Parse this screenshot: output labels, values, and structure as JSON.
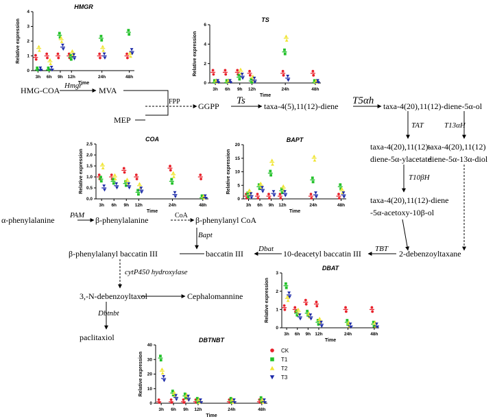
{
  "pathway": {
    "nodes": {
      "hmg_coa": "HMG-COA",
      "mva": "MVA",
      "mep": "MEP",
      "ggpp": "GGPP",
      "taxadiene": "taxa-4(5),11(12)-diene",
      "taxadienol": "taxa-4(20),11(12)-diene-5α-ol",
      "taxadienyl_acetate_1": "taxa-4(20),11(12)-",
      "taxadienyl_acetate_2": "diene-5α-ylacetate",
      "taxadiene_diol_1": "taxa-4(20),11(12)",
      "taxadiene_diol_2": "diene-5α-13α-diol",
      "acetoxy_1": "taxa-4(20),11(12)-diene",
      "acetoxy_2": "-5α-acetoxy-10β-ol",
      "debenzoyltaxane": "2-debenzoyltaxane",
      "deacetyl_baccatin": "10-deacetyl baccatin III",
      "baccatin": "baccatin III",
      "alpha_phe": "α-phenylalanine",
      "beta_phe": "β-phenylalanine",
      "beta_phe_coa": "β-phenylanyl CoA",
      "beta_phe_baccatin": "β-phenylalanyl baccatin III",
      "debenzoyltaxol": "3,-N-debenzoyltaxol",
      "cephalomannine": "Cephalomannine",
      "paclitaxel": "paclitaxiol"
    },
    "enzymes": {
      "hmgr": "Hmgr",
      "fpp": "FPP",
      "ts": "Ts",
      "t5ah": "T5αh",
      "tat": "TAT",
      "t13ah": "T13αH",
      "t10bh": "T10βH",
      "tbt": "TBT",
      "dbat": "Dbat",
      "bapt": "Bapt",
      "pam": "PAM",
      "coa": "CoA",
      "cyp450": "cytP450 hydroxylase",
      "dbtnbt": "Dbtnbt"
    }
  },
  "legend": {
    "items": [
      {
        "label": "CK",
        "color": "#e8202a",
        "shape": "circle"
      },
      {
        "label": "T1",
        "color": "#22c12a",
        "shape": "square"
      },
      {
        "label": "T2",
        "color": "#f0e534",
        "shape": "triangle-up"
      },
      {
        "label": "T3",
        "color": "#1c2aa8",
        "shape": "triangle-down"
      }
    ]
  },
  "chart_data": [
    {
      "type": "scatter",
      "title": "HMGR",
      "ylabel": "Relative expression",
      "xlabel": "Time",
      "categories": [
        "3h",
        "6h",
        "9h",
        "12h",
        "24h",
        "48h"
      ],
      "ylim": [
        0,
        4
      ],
      "yticks": [
        0,
        1,
        2,
        3,
        4
      ],
      "series": [
        {
          "name": "CK",
          "values": [
            0.9,
            1.0,
            1.0,
            1.0,
            1.0,
            1.0
          ]
        },
        {
          "name": "T1",
          "values": [
            0.05,
            0.05,
            2.4,
            0.9,
            2.2,
            2.6
          ]
        },
        {
          "name": "T2",
          "values": [
            1.5,
            0.6,
            2.1,
            1.2,
            1.5,
            1.1
          ]
        },
        {
          "name": "T3",
          "values": [
            0.05,
            0.1,
            1.6,
            0.95,
            1.0,
            1.3
          ]
        }
      ]
    },
    {
      "type": "scatter",
      "title": "TS",
      "ylabel": "Relative expression",
      "xlabel": "Time",
      "categories": [
        "3h",
        "6h",
        "9h",
        "12h",
        "24h",
        "48h"
      ],
      "ylim": [
        0,
        6
      ],
      "yticks": [
        0,
        2,
        4,
        6
      ],
      "series": [
        {
          "name": "CK",
          "values": [
            1.1,
            1.1,
            1.1,
            1.0,
            1.0,
            1.0
          ]
        },
        {
          "name": "T1",
          "values": [
            0.05,
            0.05,
            0.6,
            0.2,
            3.2,
            0.05
          ]
        },
        {
          "name": "T2",
          "values": [
            0.1,
            0.1,
            1.2,
            0.5,
            4.6,
            0.05
          ]
        },
        {
          "name": "T3",
          "values": [
            0.05,
            0.05,
            0.7,
            0.3,
            0.5,
            0.05
          ]
        }
      ]
    },
    {
      "type": "scatter",
      "title": "COA",
      "ylabel": "Relative expression",
      "xlabel": "Time",
      "categories": [
        "3h",
        "6h",
        "9h",
        "12h",
        "24h",
        "48h"
      ],
      "ylim": [
        0,
        2.5
      ],
      "yticks": [
        0.0,
        0.5,
        1.0,
        1.5,
        2.0,
        2.5
      ],
      "series": [
        {
          "name": "CK",
          "values": [
            1.0,
            1.0,
            1.3,
            1.0,
            1.4,
            1.0
          ]
        },
        {
          "name": "T1",
          "values": [
            0.9,
            0.8,
            0.7,
            0.3,
            0.8,
            0.05
          ]
        },
        {
          "name": "T2",
          "values": [
            1.5,
            1.0,
            0.8,
            0.6,
            1.1,
            0.05
          ]
        },
        {
          "name": "T3",
          "values": [
            0.5,
            0.6,
            0.6,
            0.4,
            0.2,
            0.05
          ]
        }
      ]
    },
    {
      "type": "scatter",
      "title": "BAPT",
      "ylabel": "Relative expression",
      "xlabel": "Time",
      "categories": [
        "3h",
        "6h",
        "9h",
        "12h",
        "24h",
        "48h"
      ],
      "ylim": [
        0,
        20
      ],
      "yticks": [
        0,
        5,
        10,
        15,
        20
      ],
      "series": [
        {
          "name": "CK",
          "values": [
            1.0,
            1.0,
            1.0,
            1.0,
            1.0,
            1.0
          ]
        },
        {
          "name": "T1",
          "values": [
            1.5,
            4.5,
            9.5,
            3.0,
            7.0,
            4.5
          ]
        },
        {
          "name": "T2",
          "values": [
            2.5,
            5.0,
            13.5,
            4.0,
            15.0,
            3.0
          ]
        },
        {
          "name": "T3",
          "values": [
            1.2,
            3.5,
            2.0,
            2.0,
            1.5,
            1.5
          ]
        }
      ]
    },
    {
      "type": "scatter",
      "title": "DBAT",
      "ylabel": "Relative expression",
      "xlabel": "Time",
      "categories": [
        "3h",
        "6h",
        "9h",
        "12h",
        "24h",
        "48h"
      ],
      "ylim": [
        0,
        3
      ],
      "yticks": [
        0,
        1,
        2,
        3
      ],
      "series": [
        {
          "name": "CK",
          "values": [
            1.1,
            1.0,
            1.4,
            1.3,
            1.0,
            1.0
          ]
        },
        {
          "name": "T1",
          "values": [
            2.3,
            0.8,
            0.8,
            0.3,
            0.3,
            0.2
          ]
        },
        {
          "name": "T2",
          "values": [
            1.6,
            0.9,
            0.7,
            0.4,
            0.2,
            0.2
          ]
        },
        {
          "name": "T3",
          "values": [
            1.8,
            0.6,
            0.6,
            0.2,
            0.1,
            0.1
          ]
        }
      ]
    },
    {
      "type": "scatter",
      "title": "DBTNBT",
      "ylabel": "Relative expression",
      "xlabel": "Time",
      "categories": [
        "3h",
        "6h",
        "9h",
        "12h",
        "24h",
        "48h"
      ],
      "ylim": [
        0,
        40
      ],
      "yticks": [
        0,
        10,
        20,
        30,
        40
      ],
      "series": [
        {
          "name": "CK",
          "values": [
            1.0,
            1.0,
            1.0,
            1.0,
            1.0,
            1.0
          ]
        },
        {
          "name": "T1",
          "values": [
            31,
            7,
            5,
            2,
            2,
            2.5
          ]
        },
        {
          "name": "T2",
          "values": [
            22,
            6,
            4.5,
            1.5,
            1.5,
            1.5
          ]
        },
        {
          "name": "T3",
          "values": [
            17,
            4,
            3.5,
            1,
            1,
            1
          ]
        }
      ]
    }
  ]
}
